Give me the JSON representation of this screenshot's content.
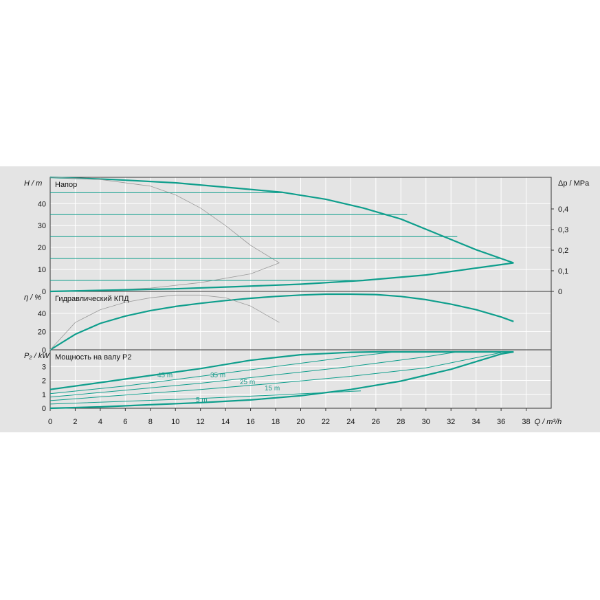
{
  "colors": {
    "primary": "#0e9e8c",
    "secondary": "#9a9a9a",
    "grid": "#ffffff",
    "background": "#e4e4e4"
  },
  "chart_data": {
    "type": "line",
    "x_axis": {
      "ticks": [
        0,
        2,
        4,
        6,
        8,
        10,
        12,
        14,
        16,
        18,
        20,
        22,
        24,
        26,
        28,
        30,
        32,
        34,
        36,
        38
      ],
      "unit_label": "Q / m³/h",
      "range": [
        0,
        40
      ]
    },
    "panels": [
      {
        "id": "head",
        "title": "Напор",
        "y_label": "H / m",
        "y_ticks": [
          0,
          10,
          20,
          30,
          40
        ],
        "ylim": [
          0,
          52
        ],
        "right_axis_label": "Δp / MPa",
        "right_ticks": [
          "0",
          "0,1",
          "0,2",
          "0,3",
          "0,4"
        ],
        "series": [
          {
            "role": "main",
            "x": [
              0,
              5,
              10,
              15,
              18.5,
              22,
              25,
              28,
              31,
              34,
              37
            ],
            "y": [
              52,
              51,
              49.5,
              47,
              45.2,
              42,
              38,
              33,
              26,
              19,
              13
            ]
          },
          {
            "role": "reference",
            "x": [
              0,
              4,
              8,
              10,
              12,
              14,
              16,
              18.3
            ],
            "y": [
              52,
              51,
              48,
              44,
              38,
              30,
              21,
              13
            ]
          },
          {
            "role": "reference",
            "x": [
              4,
              8,
              12,
              16,
              18.3
            ],
            "y": [
              0.4,
              1.5,
              4,
              8,
              13
            ]
          },
          {
            "role": "main",
            "x": [
              0,
              5,
              10,
              15,
              20,
              25,
              30,
              37
            ],
            "y": [
              0,
              0.6,
              1.2,
              2.2,
              3.3,
              5,
              7.5,
              13
            ]
          },
          {
            "role": "horizontal",
            "value": 45,
            "x_end": 18.5
          },
          {
            "role": "horizontal",
            "value": 35,
            "x_end": 28.5
          },
          {
            "role": "horizontal",
            "value": 25,
            "x_end": 32.5
          },
          {
            "role": "horizontal",
            "value": 15,
            "x_end": 36.0
          },
          {
            "role": "horizontal",
            "value": 5,
            "x_end": 24.5
          }
        ]
      },
      {
        "id": "efficiency",
        "title": "Гидравлический КПД",
        "y_label": "η / %",
        "y_ticks": [
          0,
          20,
          40
        ],
        "ylim": [
          0,
          64
        ],
        "series": [
          {
            "role": "main",
            "x": [
              0,
              2,
              4,
              6,
              8,
              10,
              12,
              14,
              16,
              18,
              20,
              22,
              24,
              26,
              28,
              30,
              32,
              34,
              36,
              37
            ],
            "y": [
              0,
              17,
              29,
              37,
              43,
              47.5,
              51,
              54,
              56.5,
              58.5,
              60,
              61,
              61,
              60.5,
              58.5,
              55,
              50,
              44,
              36,
              31
            ]
          },
          {
            "role": "reference",
            "x": [
              0,
              2,
              4,
              6,
              8,
              10,
              12,
              14,
              16,
              18.3
            ],
            "y": [
              0,
              30,
              44,
              52,
              57,
              60,
              60,
              57,
              48,
              30
            ]
          }
        ]
      },
      {
        "id": "power",
        "title": "Мощность на валу P2",
        "y_label": "P₂ / kW",
        "y_ticks": [
          0,
          1,
          2,
          3
        ],
        "ylim": [
          0,
          4.2
        ],
        "curve_labels": [
          "45 m",
          "35 m",
          "25 m",
          "15 m",
          "5 m"
        ],
        "series": [
          {
            "role": "main",
            "x": [
              0,
              4,
              8,
              12,
              16,
              20,
              24,
              26,
              28,
              32,
              37
            ],
            "y": [
              1.35,
              1.85,
              2.35,
              2.85,
              3.45,
              3.85,
              4.02,
              4.05,
              4.05,
              4.05,
              4.05
            ]
          },
          {
            "role": "main",
            "x": [
              0,
              4,
              8,
              12,
              16,
              20,
              24,
              28,
              32,
              36,
              37
            ],
            "y": [
              0,
              0.1,
              0.25,
              0.4,
              0.6,
              0.9,
              1.35,
              1.95,
              2.8,
              3.9,
              4.05
            ]
          },
          {
            "role": "thin",
            "x": [
              0,
              6,
              12,
              18,
              24,
              27.5
            ],
            "y": [
              1.05,
              1.6,
              2.3,
              3.0,
              3.7,
              4.05
            ]
          },
          {
            "role": "thin",
            "x": [
              0,
              6,
              12,
              18,
              24,
              30,
              32.5
            ],
            "y": [
              0.8,
              1.3,
              1.8,
              2.4,
              3.0,
              3.7,
              4.05
            ]
          },
          {
            "role": "thin",
            "x": [
              0,
              6,
              12,
              18,
              24,
              30,
              36
            ],
            "y": [
              0.55,
              0.95,
              1.35,
              1.8,
              2.3,
              2.9,
              4.0
            ]
          },
          {
            "role": "thin",
            "x": [
              0,
              6,
              12,
              18,
              24.8
            ],
            "y": [
              0.3,
              0.5,
              0.7,
              0.95,
              1.25
            ]
          }
        ]
      }
    ]
  }
}
